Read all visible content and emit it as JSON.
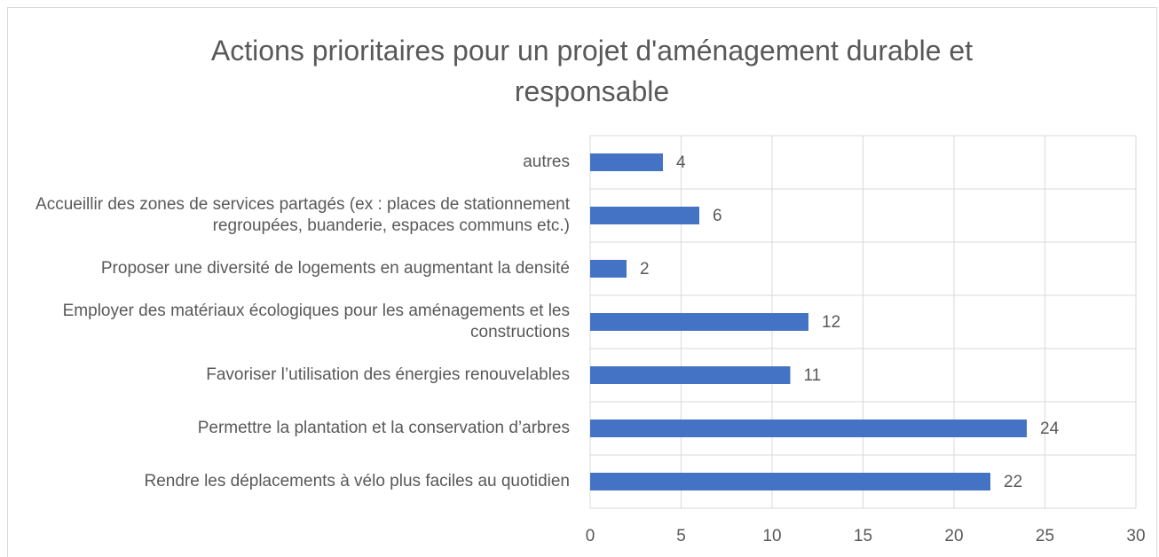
{
  "chart_data": {
    "type": "bar",
    "orientation": "horizontal",
    "title": "Actions prioritaires pour un projet d'aménagement durable et responsable",
    "categories": [
      "autres",
      "Accueillir des zones de services partagés (ex : places de stationnement regroupées, buanderie, espaces communs etc.)",
      "Proposer une diversité de logements en augmentant la densité",
      "Employer des matériaux écologiques pour les aménagements et les constructions",
      "Favoriser l’utilisation des énergies renouvelables",
      "Permettre la plantation et la conservation d’arbres",
      "Rendre les déplacements à vélo plus faciles au quotidien"
    ],
    "values": [
      4,
      6,
      2,
      12,
      11,
      24,
      22
    ],
    "color": "#4472c4",
    "xlim": [
      0,
      30
    ],
    "xticks": [
      0,
      5,
      10,
      15,
      20,
      25,
      30
    ],
    "grid": true
  }
}
